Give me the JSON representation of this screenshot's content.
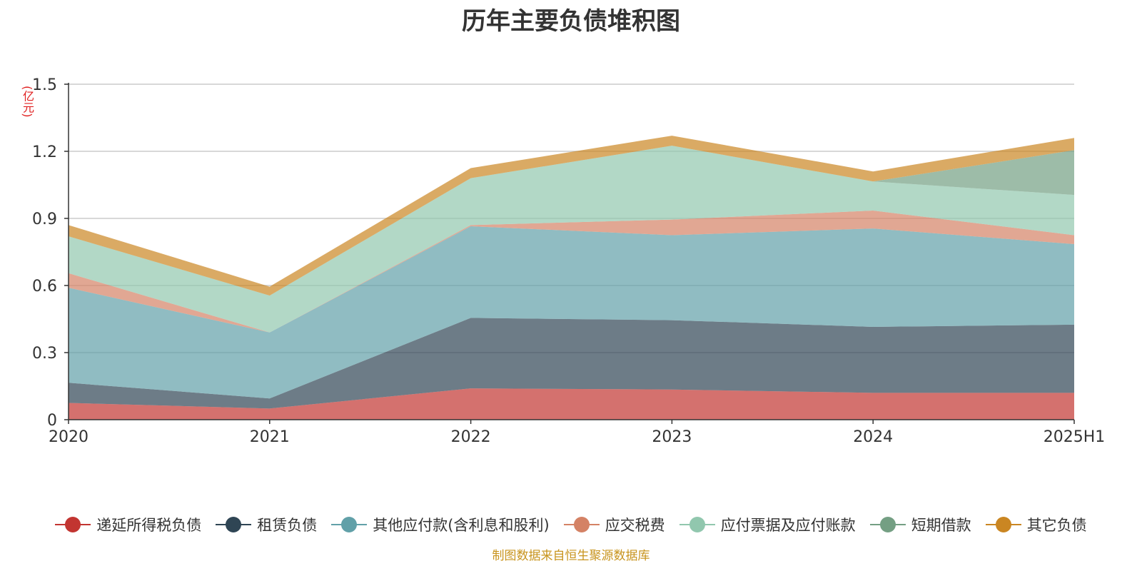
{
  "chart_data": {
    "type": "area",
    "stacked": true,
    "title": "历年主要负债堆积图",
    "unit_label": "(亿元)",
    "source": "制图数据来自恒生聚源数据库",
    "categories": [
      "2020",
      "2021",
      "2022",
      "2023",
      "2024",
      "2025H1"
    ],
    "ylim": [
      0,
      1.5
    ],
    "yticks": [
      "0",
      "0.3",
      "0.6",
      "0.9",
      "1.2",
      "1.5"
    ],
    "grid": true,
    "legend_position": "bottom",
    "series": [
      {
        "name": "递延所得税负债",
        "color": "#c23531",
        "values": [
          0.075,
          0.05,
          0.14,
          0.135,
          0.12,
          0.12
        ]
      },
      {
        "name": "租赁负债",
        "color": "#2f4554",
        "values": [
          0.09,
          0.045,
          0.315,
          0.31,
          0.295,
          0.305
        ]
      },
      {
        "name": "其他应付款(含利息和股利)",
        "color": "#61a0a8",
        "values": [
          0.425,
          0.295,
          0.41,
          0.38,
          0.44,
          0.36
        ]
      },
      {
        "name": "应交税费",
        "color": "#d48265",
        "values": [
          0.065,
          0.0,
          0.005,
          0.07,
          0.08,
          0.04
        ]
      },
      {
        "name": "应付票据及应付账款",
        "color": "#91c7ae",
        "values": [
          0.165,
          0.165,
          0.21,
          0.33,
          0.13,
          0.18
        ]
      },
      {
        "name": "短期借款",
        "color": "#749f83",
        "values": [
          0.0,
          0.0,
          0.0,
          0.0,
          0.0,
          0.2
        ]
      },
      {
        "name": "其它负债",
        "color": "#ca8622",
        "values": [
          0.05,
          0.04,
          0.045,
          0.045,
          0.045,
          0.055
        ]
      }
    ]
  }
}
